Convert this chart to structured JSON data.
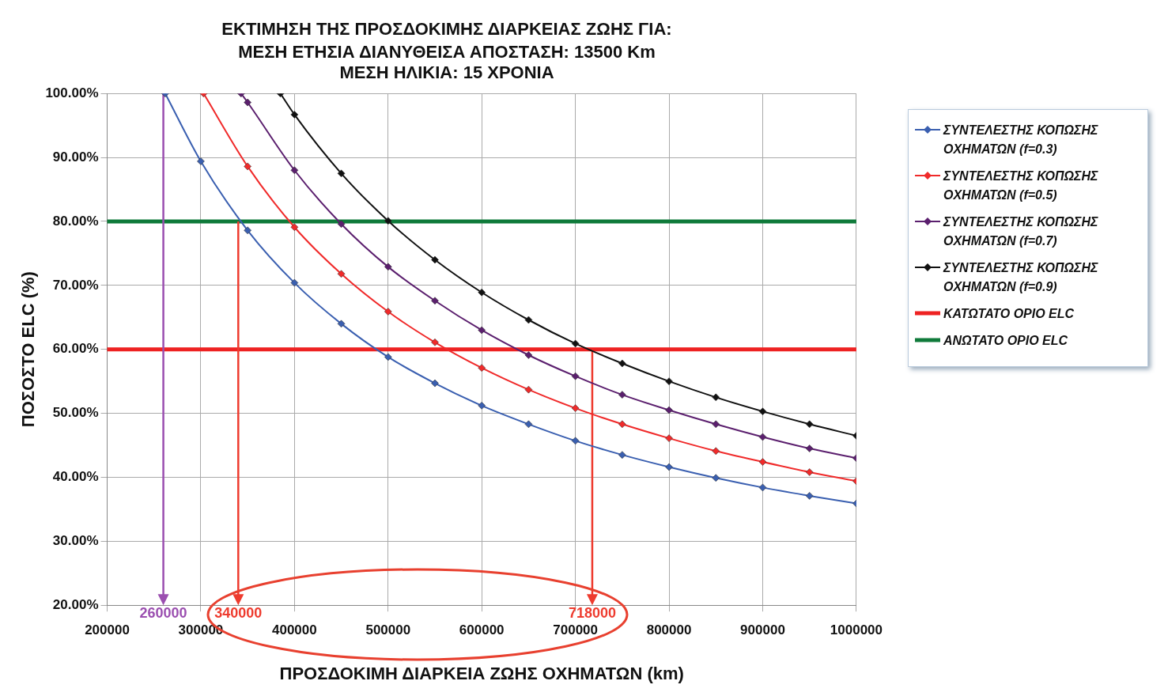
{
  "chart_data": {
    "type": "line",
    "title": "ΕΚΤΙΜΗΣΗ ΤΗΣ ΠΡΟΣΔΟΚΙΜΗΣ ΔΙΑΡΚΕΙΑΣ ΖΩΗΣ ΓΙΑ:",
    "subtitle": "ΜΕΣΗ ΕΤΗΣΙΑ ΔΙΑΝΥΘΕΙΣΑ ΑΠΟΣΤΑΣΗ: 13500 Km\nΜΕΣΗ ΗΛΙΚΙΑ: 15 ΧΡΟΝΙΑ",
    "xlabel": "ΠΡΟΣΔΟΚΙΜΗ ΔΙΑΡΚΕΙΑ ΖΩΗΣ ΟΧΗΜΑΤΩΝ (km)",
    "ylabel": "ΠΟΣΟΣΤΟ ELC (%)",
    "series": [
      {
        "name": "ΣΥΝΤΕΛΕΣΤΗΣ ΚΟΠΩΣΗΣ ΟΧΗΜΑΤΩΝ (f=0.3)",
        "color": "#3a5fb0",
        "x": [
          262000,
          300000,
          350000,
          400000,
          450000,
          500000,
          550000,
          600000,
          650000,
          700000,
          750000,
          800000,
          850000,
          900000,
          950000,
          1000000
        ],
        "values": [
          100,
          89.4,
          78.6,
          70.4,
          64.0,
          58.8,
          54.7,
          51.2,
          48.3,
          45.7,
          43.5,
          41.6,
          39.9,
          38.4,
          37.1,
          35.9
        ]
      },
      {
        "name": "ΣΥΝΤΕΛΕΣΤΗΣ ΚΟΠΩΣΗΣ ΟΧΗΜΑΤΩΝ (f=0.5)",
        "color": "#f02a2a",
        "x": [
          303000,
          350000,
          400000,
          450000,
          500000,
          550000,
          600000,
          650000,
          700000,
          750000,
          800000,
          850000,
          900000,
          950000,
          1000000
        ],
        "values": [
          100,
          88.6,
          79.1,
          71.8,
          65.9,
          61.1,
          57.1,
          53.7,
          50.8,
          48.3,
          46.1,
          44.1,
          42.4,
          40.8,
          39.4
        ]
      },
      {
        "name": "ΣΥΝΤΕΛΕΣΤΗΣ ΚΟΠΩΣΗΣ ΟΧΗΜΑΤΩΝ (f=0.7)",
        "color": "#5b1f6e",
        "x": [
          343000,
          350000,
          400000,
          450000,
          500000,
          550000,
          600000,
          650000,
          700000,
          750000,
          800000,
          850000,
          900000,
          950000,
          1000000
        ],
        "values": [
          100,
          98.6,
          88.0,
          79.6,
          72.9,
          67.6,
          63.0,
          59.1,
          55.8,
          52.9,
          50.5,
          48.3,
          46.3,
          44.5,
          43.0
        ]
      },
      {
        "name": "ΣΥΝΤΕΛΕΣΤΗΣ ΚΟΠΩΣΗΣ ΟΧΗΜΑΤΩΝ (f=0.9)",
        "color": "#111111",
        "x": [
          385000,
          400000,
          450000,
          500000,
          550000,
          600000,
          650000,
          700000,
          750000,
          800000,
          850000,
          900000,
          950000,
          1000000
        ],
        "values": [
          100,
          96.7,
          87.5,
          80.1,
          74.0,
          68.9,
          64.6,
          60.9,
          57.8,
          55.0,
          52.5,
          50.3,
          48.3,
          46.5
        ]
      }
    ],
    "ref_lines": [
      {
        "axis": "y",
        "value": 60,
        "label": "ΚΑΤΩΤΑΤΟ ΟΡΙΟ ELC",
        "color": "#ee2222"
      },
      {
        "axis": "y",
        "value": 80,
        "label": "ΑΝΩΤΑΤΟ ΟΡΙΟ ELC",
        "color": "#0f7a3a"
      }
    ],
    "annotations": [
      {
        "text": "260000",
        "x": 260000,
        "y": 100
      },
      {
        "text": "340000",
        "x": 340000,
        "y": 80
      },
      {
        "text": "718000",
        "x": 718000,
        "y": 60
      }
    ],
    "xlim": [
      200000,
      1000000
    ],
    "xticks": [
      200000,
      300000,
      400000,
      500000,
      600000,
      700000,
      800000,
      900000,
      1000000
    ],
    "ylim": [
      20,
      100
    ],
    "yticks": [
      {
        "value": 20,
        "label": "20.00%"
      },
      {
        "value": 30,
        "label": "30.00%"
      },
      {
        "value": 40,
        "label": "40.00%"
      },
      {
        "value": 50,
        "label": "50.00%"
      },
      {
        "value": 60,
        "label": "60.00%"
      },
      {
        "value": 70,
        "label": "70.00%"
      },
      {
        "value": 80,
        "label": "80.00%"
      },
      {
        "value": 90,
        "label": "90.00%"
      },
      {
        "value": 100,
        "label": "100.00%"
      }
    ],
    "grid": true,
    "legend": "right",
    "marker": "diamond",
    "line_style": "solid"
  }
}
